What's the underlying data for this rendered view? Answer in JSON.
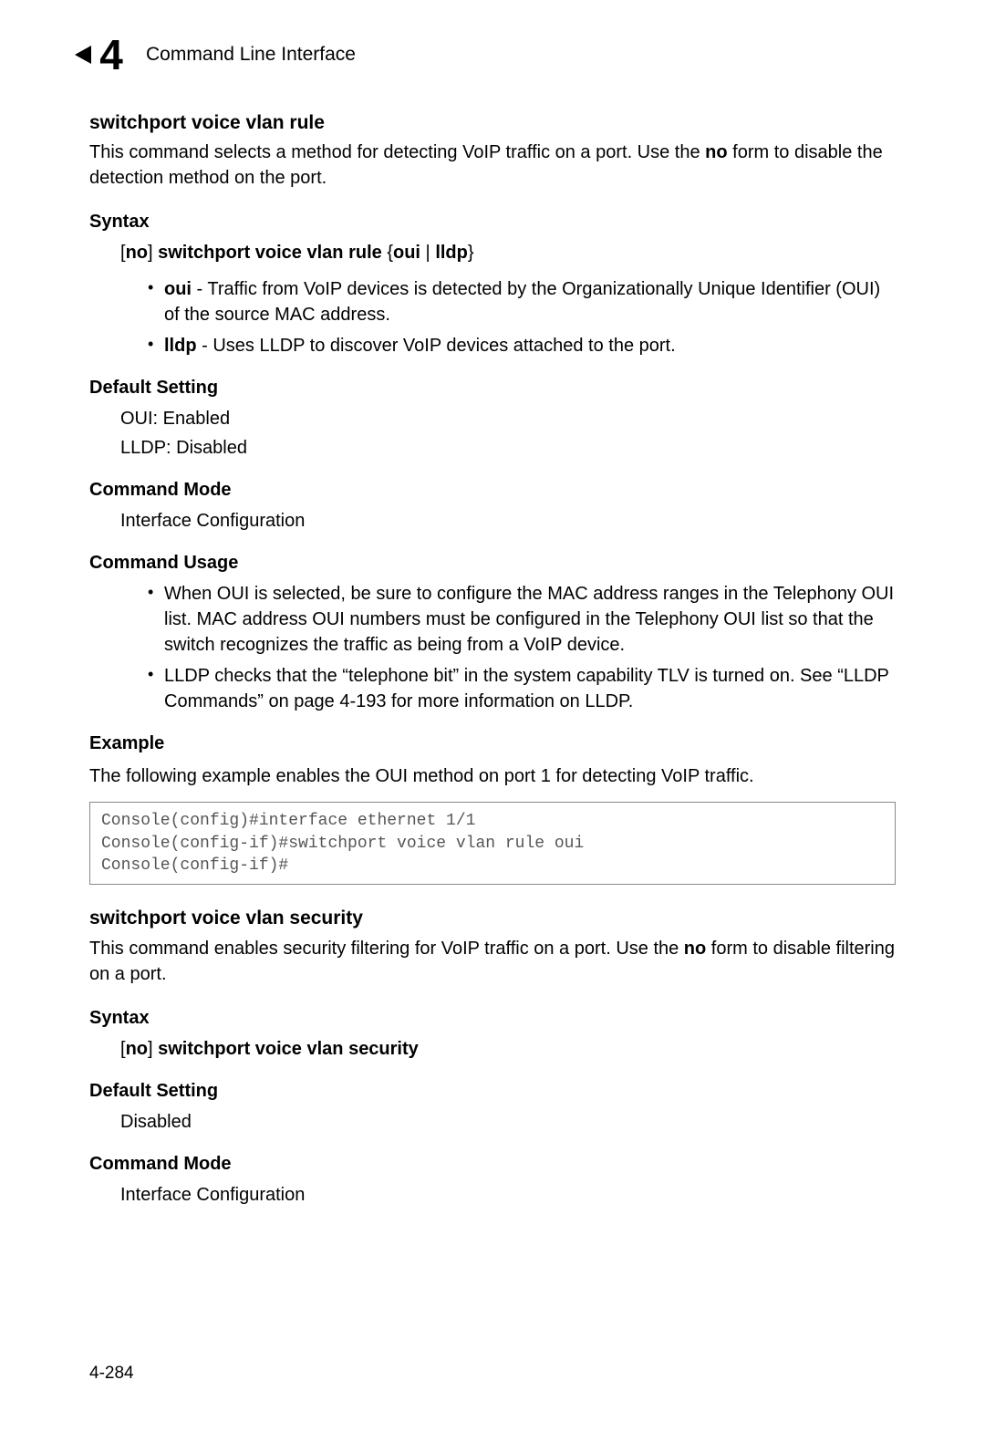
{
  "header": {
    "chapter_number": "4",
    "title": "Command Line Interface"
  },
  "cmd1": {
    "title": "switchport voice vlan rule",
    "desc_pre": "This command selects a method for detecting VoIP traffic on a port. Use the ",
    "desc_bold": "no",
    "desc_post": " form to disable the detection method on the port.",
    "syntax_label": "Syntax",
    "syntax_no": "no",
    "syntax_bracket_close": "]",
    "syntax_cmd": " switchport voice vlan rule ",
    "syntax_brace_open": "{",
    "syntax_opt1": "oui",
    "syntax_pipe": " | ",
    "syntax_opt2": "lldp",
    "syntax_brace_close": "}",
    "param1_bold": "oui",
    "param1_text": " - Traffic from VoIP devices is detected by the Organizationally Unique Identifier (OUI) of the source MAC address.",
    "param2_bold": "lldp",
    "param2_text": " - Uses LLDP to discover VoIP devices attached to the port.",
    "default_label": "Default Setting",
    "default1": "OUI: Enabled",
    "default2": "LLDP: Disabled",
    "mode_label": "Command Mode",
    "mode_value": "Interface Configuration",
    "usage_label": "Command Usage",
    "usage1": "When OUI is selected, be sure to configure the MAC address ranges in the Telephony OUI list. MAC address OUI numbers must be configured in the Telephony OUI list so that the switch recognizes the traffic as being from a VoIP device.",
    "usage2": "LLDP checks that the “telephone bit” in the system capability TLV is turned on. See “LLDP Commands” on page 4-193 for more information on LLDP.",
    "example_label": "Example",
    "example_intro": "The following example enables the OUI method on port 1 for detecting VoIP traffic.",
    "code": "Console(config)#interface ethernet 1/1\nConsole(config-if)#switchport voice vlan rule oui\nConsole(config-if)#"
  },
  "cmd2": {
    "title": "switchport voice vlan security",
    "desc_pre": "This command enables security filtering for VoIP traffic on a port. Use the ",
    "desc_bold": "no",
    "desc_post": " form to disable filtering on a port.",
    "syntax_label": "Syntax",
    "syntax_no": "no",
    "syntax_bracket_close": "]",
    "syntax_cmd": " switchport voice vlan security",
    "default_label": "Default Setting",
    "default_value": "Disabled",
    "mode_label": "Command Mode",
    "mode_value": "Interface Configuration"
  },
  "page_number": "4-284"
}
